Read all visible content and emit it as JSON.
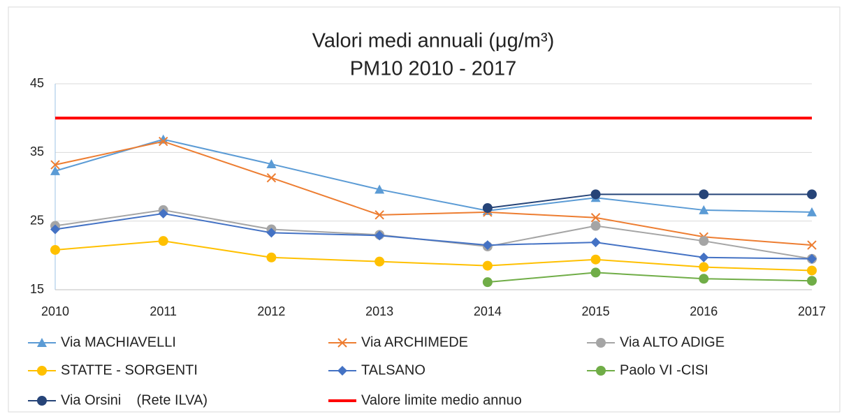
{
  "chart_data": {
    "type": "line",
    "title": "Valori medi annuali (μg/m³)",
    "subtitle": "PM10 2010 - 2017",
    "x": [
      2010,
      2011,
      2012,
      2013,
      2014,
      2015,
      2016,
      2017
    ],
    "xlim": [
      2010,
      2017
    ],
    "xticks": [
      2010,
      2011,
      2012,
      2013,
      2014,
      2015,
      2016,
      2017
    ],
    "ylim": [
      15,
      45
    ],
    "yticks": [
      15,
      25,
      35,
      45
    ],
    "grid": true,
    "legend": "bottom",
    "series": [
      {
        "name": "Via MACHIAVELLI",
        "color": "#5b9bd5",
        "marker": "triangle",
        "values": [
          32.3,
          36.9,
          33.3,
          29.6,
          26.5,
          28.4,
          26.6,
          26.3
        ]
      },
      {
        "name": "Via ARCHIMEDE",
        "color": "#ed7d31",
        "marker": "x",
        "values": [
          33.2,
          36.6,
          31.3,
          25.9,
          26.3,
          25.5,
          22.7,
          21.5
        ]
      },
      {
        "name": "Via ALTO ADIGE",
        "color": "#a5a5a5",
        "marker": "circle",
        "values": [
          24.3,
          26.6,
          23.8,
          23.0,
          21.3,
          24.3,
          22.1,
          19.5
        ]
      },
      {
        "name": "STATTE - SORGENTI",
        "color": "#ffc000",
        "marker": "circle",
        "values": [
          20.8,
          22.1,
          19.7,
          19.1,
          18.5,
          19.4,
          18.3,
          17.8
        ]
      },
      {
        "name": "TALSANO",
        "color": "#4472c4",
        "marker": "diamond",
        "values": [
          23.8,
          26.1,
          23.3,
          22.9,
          21.5,
          21.9,
          19.7,
          19.5
        ]
      },
      {
        "name": "Paolo VI -CISI",
        "color": "#70ad47",
        "marker": "circle",
        "values": [
          null,
          null,
          null,
          null,
          16.1,
          17.5,
          16.6,
          16.3
        ]
      },
      {
        "name": "Via Orsini    (Rete ILVA)",
        "color": "#264478",
        "marker": "circle",
        "values": [
          null,
          null,
          null,
          null,
          26.9,
          28.9,
          28.9,
          28.9
        ]
      },
      {
        "name": "Valore limite medio annuo",
        "color": "#ff0000",
        "marker": "none",
        "width": 4,
        "values": [
          40,
          40,
          40,
          40,
          40,
          40,
          40,
          40
        ]
      }
    ]
  }
}
